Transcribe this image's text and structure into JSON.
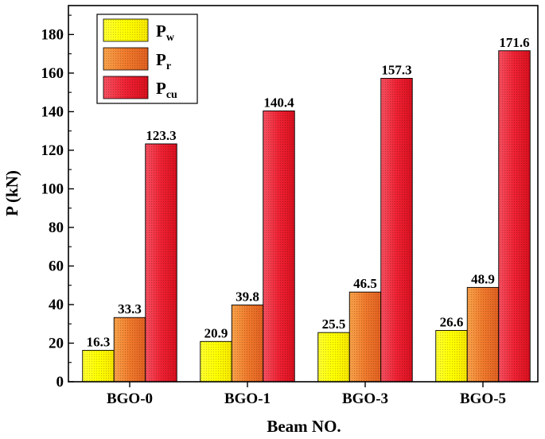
{
  "chart_data": {
    "type": "bar",
    "title": "",
    "xlabel": "Beam NO.",
    "ylabel": "P (kN)",
    "ylim": [
      0,
      195
    ],
    "yticks": [
      0,
      20,
      40,
      60,
      80,
      100,
      120,
      140,
      160,
      180
    ],
    "categories": [
      "BGO-0",
      "BGO-1",
      "BGO-3",
      "BGO-5"
    ],
    "series": [
      {
        "name": "P",
        "sub": "w",
        "color": "#ffff00",
        "values": [
          16.3,
          20.9,
          25.5,
          26.6
        ],
        "labels": [
          "16.3",
          "20.9",
          "25.5",
          "26.6"
        ]
      },
      {
        "name": "P",
        "sub": "r",
        "color": "#f08030",
        "values": [
          33.3,
          39.8,
          46.5,
          48.9
        ],
        "labels": [
          "33.3",
          "39.8",
          "46.5",
          "48.9"
        ]
      },
      {
        "name": "P",
        "sub": "cu",
        "color": "#ee2233",
        "values": [
          123.3,
          140.4,
          157.3,
          171.6
        ],
        "labels": [
          "123.3",
          "140.4",
          "157.3",
          "171.6"
        ]
      }
    ],
    "legend": "top-left",
    "grid": false
  }
}
